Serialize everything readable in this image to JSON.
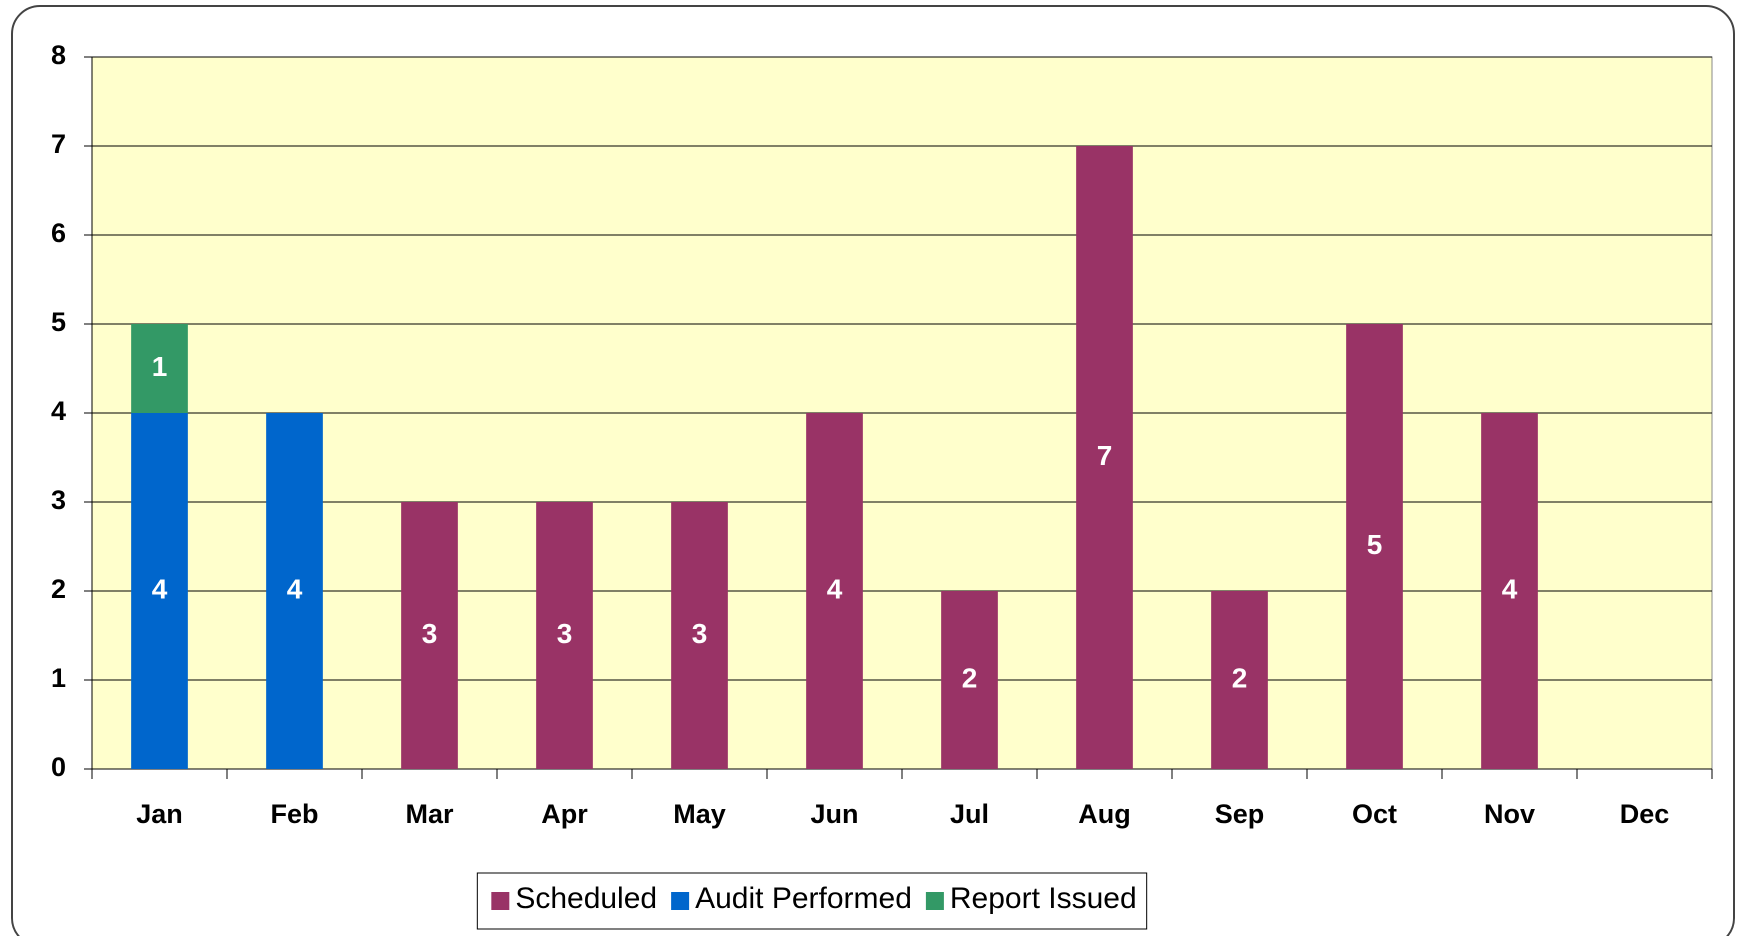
{
  "chart_data": {
    "type": "stacked_bar",
    "categories": [
      "Jan",
      "Feb",
      "Mar",
      "Apr",
      "May",
      "Jun",
      "Jul",
      "Aug",
      "Sep",
      "Oct",
      "Nov",
      "Dec"
    ],
    "series": [
      {
        "name": "Scheduled",
        "color": "#993366",
        "values": [
          null,
          null,
          3,
          3,
          3,
          4,
          2,
          7,
          2,
          5,
          4,
          null
        ]
      },
      {
        "name": "Audit Performed",
        "color": "#0066cc",
        "values": [
          4,
          4,
          null,
          null,
          null,
          null,
          null,
          null,
          null,
          null,
          null,
          null
        ]
      },
      {
        "name": "Report Issued",
        "color": "#339966",
        "values": [
          1,
          null,
          null,
          null,
          null,
          null,
          null,
          null,
          null,
          null,
          null,
          null
        ]
      }
    ],
    "ylim": [
      0,
      8
    ],
    "yticks": [
      0,
      1,
      2,
      3,
      4,
      5,
      6,
      7,
      8
    ],
    "grid": true,
    "legend": "bottom",
    "plot_background": "#ffffcc"
  }
}
